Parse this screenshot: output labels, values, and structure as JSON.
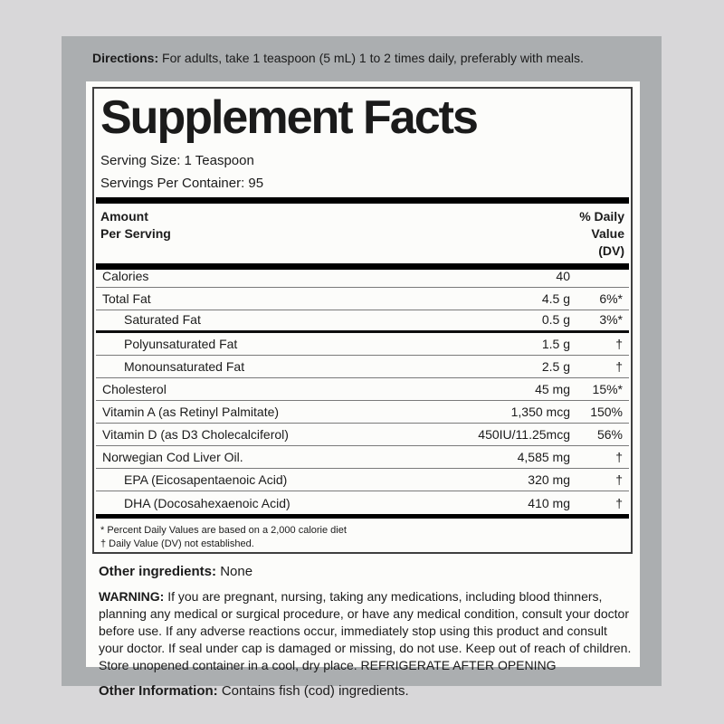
{
  "directions": {
    "label": "Directions:",
    "text": "For adults, take 1 teaspoon (5 mL) 1 to 2 times daily, preferably with meals."
  },
  "supplement_facts": {
    "title": "Supplement Facts",
    "serving_size": "Serving Size: 1 Teaspoon",
    "servings_per_container": "Servings Per Container: 95",
    "header": {
      "amount_line1": "Amount",
      "amount_line2": "Per Serving",
      "dv_line1": "% Daily",
      "dv_line2": "Value",
      "dv_line3": "(DV)"
    },
    "rows": [
      {
        "label": "Calories",
        "amount": "40",
        "dv": ""
      },
      {
        "label": "Total Fat",
        "amount": "4.5 g",
        "dv": "6%*"
      },
      {
        "label": "Saturated Fat",
        "amount": "0.5 g",
        "dv": "3%*"
      },
      {
        "label": "Polyunsaturated Fat",
        "amount": "1.5 g",
        "dv": "†"
      },
      {
        "label": "Monounsaturated Fat",
        "amount": "2.5 g",
        "dv": "†"
      },
      {
        "label": "Cholesterol",
        "amount": "45 mg",
        "dv": "15%*"
      },
      {
        "label": "Vitamin A (as Retinyl Palmitate)",
        "amount": "1,350 mcg",
        "dv": "150%"
      },
      {
        "label": "Vitamin D (as D3 Cholecalciferol)",
        "amount": "450IU/11.25mcg",
        "dv": "56%"
      },
      {
        "label": "Norwegian Cod Liver Oil.",
        "amount": "4,585 mg",
        "dv": "†"
      },
      {
        "label": "EPA (Eicosapentaenoic Acid)",
        "amount": "320 mg",
        "dv": "†"
      },
      {
        "label": "DHA (Docosahexaenoic Acid)",
        "amount": "410 mg",
        "dv": "†"
      }
    ],
    "footnotes": [
      "* Percent Daily Values are based on a 2,000 calorie diet",
      "† Daily Value (DV) not established."
    ]
  },
  "other_ingredients": {
    "label": "Other ingredients:",
    "text": "None"
  },
  "warning": {
    "label": "WARNING:",
    "text": "If you are pregnant, nursing, taking any medications, including blood thinners, planning any medical or surgical procedure, or have any medical condition, consult your doctor before use. If any adverse reactions occur, immediately stop using this product and consult your doctor. If seal under cap is damaged or missing, do not use. Keep out of reach of children. Store unopened container in a cool, dry place. REFRIGERATE AFTER OPENING"
  },
  "other_information": {
    "label": "Other Information:",
    "text": "Contains fish (cod) ingredients."
  },
  "colors": {
    "page_background": "#d8d7d9",
    "panel_gray": "#abaeb0",
    "label_background": "#fcfcfa",
    "text": "#1b1b1b",
    "thick_rule": "#000000",
    "row_separator": "#7a7a7a"
  }
}
